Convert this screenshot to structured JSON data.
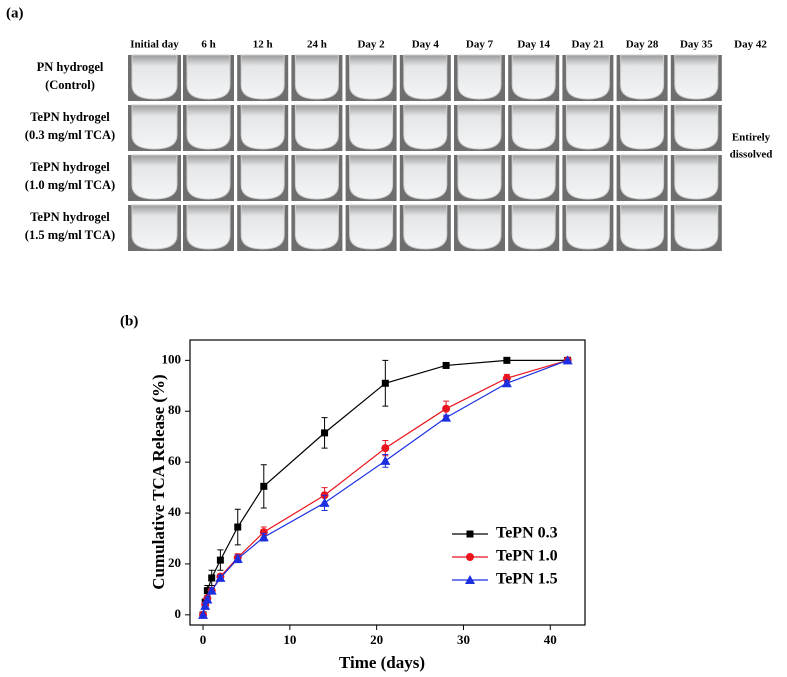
{
  "panel_a": {
    "label": "(a)",
    "columns": [
      "Initial day",
      "6 h",
      "12 h",
      "24 h",
      "Day 2",
      "Day 4",
      "Day 7",
      "Day 14",
      "Day 21",
      "Day 28",
      "Day 35",
      "Day 42"
    ],
    "rows": [
      {
        "name": "PN hydrogel",
        "detail": "(Control)"
      },
      {
        "name": "TePN hydrogel",
        "detail": "(0.3 mg/ml TCA)"
      },
      {
        "name": "TePN hydrogel",
        "detail": "(1.0 mg/ml TCA)"
      },
      {
        "name": "TePN hydrogel",
        "detail": "(1.5 mg/ml TCA)"
      }
    ],
    "note": [
      "Entirely",
      "dissolved"
    ]
  },
  "chart_data": {
    "type": "line",
    "panel_label": "(b)",
    "x_label": "Time (days)",
    "y_label": "Cumulative TCA Release (%)",
    "x": [
      0,
      0.25,
      0.5,
      1,
      2,
      4,
      7,
      14,
      21,
      28,
      35,
      42
    ],
    "series": [
      {
        "name": "TePN 0.3",
        "color": "#000000",
        "marker": "square",
        "values": [
          0,
          5,
          9.5,
          14.5,
          21.5,
          34.5,
          50.5,
          71.5,
          91,
          98,
          100,
          100
        ],
        "errors": [
          0,
          1,
          2,
          3,
          4,
          7,
          8.5,
          6,
          9,
          1,
          0.5,
          0
        ]
      },
      {
        "name": "TePN 1.0",
        "color": "#e8141e",
        "marker": "circle",
        "values": [
          0,
          4,
          6.5,
          9.5,
          15,
          22.5,
          32.5,
          47,
          65.5,
          81,
          93,
          100
        ],
        "errors": [
          0,
          1,
          1,
          1,
          1,
          1.5,
          2,
          3,
          3,
          3,
          1.5,
          0
        ]
      },
      {
        "name": "TePN 1.5",
        "color": "#1b2fe0",
        "marker": "triangle",
        "values": [
          0,
          3.5,
          6,
          9.5,
          14.5,
          22,
          30.5,
          44,
          60.5,
          77.5,
          91,
          100
        ],
        "errors": [
          0,
          1,
          1,
          1,
          1,
          1.5,
          1.5,
          3,
          2.5,
          1,
          1,
          0
        ]
      }
    ],
    "xlim": [
      -1.5,
      44
    ],
    "ylim": [
      -4,
      108
    ],
    "xticks": [
      0,
      10,
      20,
      30,
      40
    ],
    "yticks": [
      0,
      20,
      40,
      60,
      80,
      100
    ],
    "legend": "lower-right"
  }
}
